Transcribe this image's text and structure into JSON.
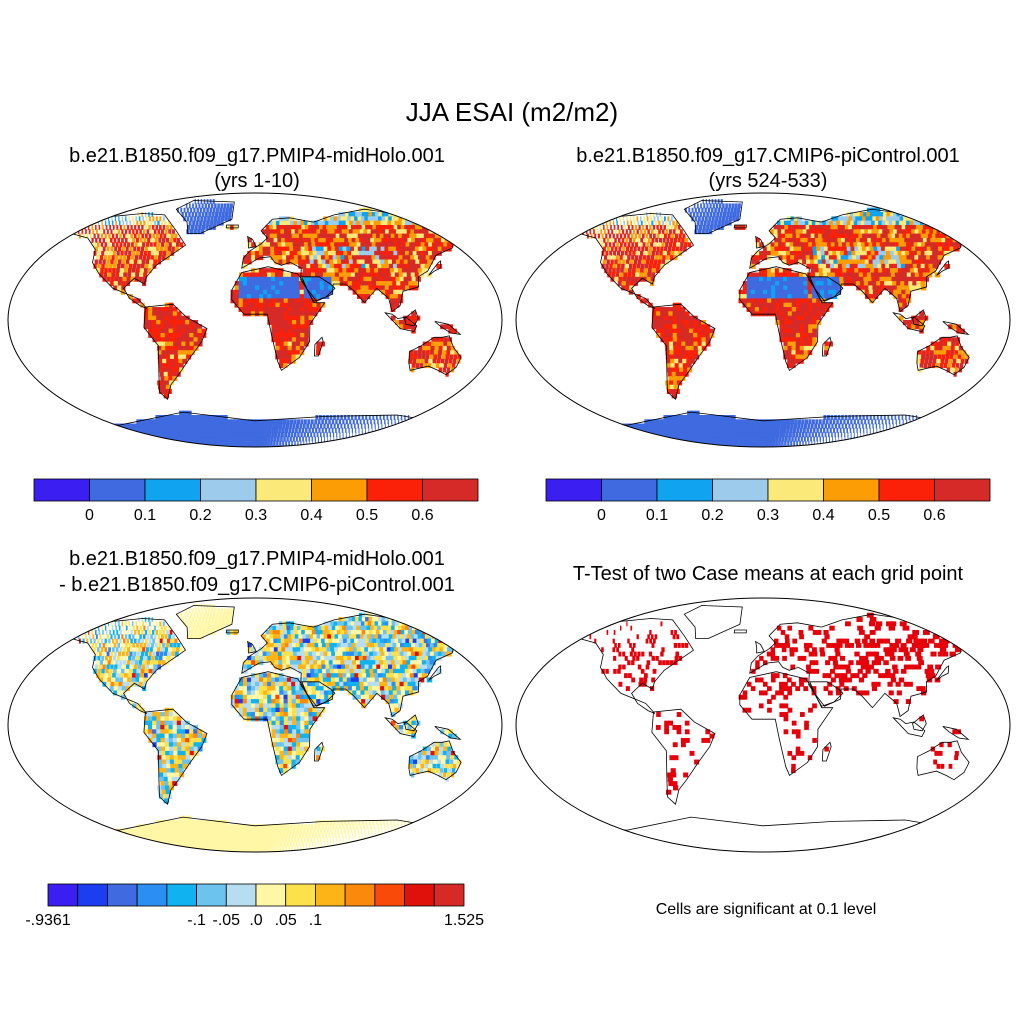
{
  "title": "JJA ESAI (m2/m2)",
  "chart_data": [
    {
      "type": "heatmap",
      "title_line1": "b.e21.B1850.f09_g17.PMIP4-midHolo.001",
      "title_line2": "(yrs 1-10)",
      "variable": "ESAI",
      "units": "m2/m2",
      "colorbar": {
        "labels": [
          "0",
          "0.1",
          "0.2",
          "0.3",
          "0.4",
          "0.5",
          "0.6"
        ],
        "colors": [
          "#3b1ff2",
          "#3f6ae0",
          "#10a4f0",
          "#9ccbec",
          "#fbe97a",
          "#fc9d06",
          "#fa2108",
          "#d52a27"
        ]
      }
    },
    {
      "type": "heatmap",
      "title_line1": "b.e21.B1850.f09_g17.CMIP6-piControl.001",
      "title_line2": "(yrs 524-533)",
      "variable": "ESAI",
      "units": "m2/m2",
      "colorbar": {
        "labels": [
          "0",
          "0.1",
          "0.2",
          "0.3",
          "0.4",
          "0.5",
          "0.6"
        ],
        "colors": [
          "#3b1ff2",
          "#3f6ae0",
          "#10a4f0",
          "#9ccbec",
          "#fbe97a",
          "#fc9d06",
          "#fa2108",
          "#d52a27"
        ]
      }
    },
    {
      "type": "heatmap",
      "title_line1": "b.e21.B1850.f09_g17.PMIP4-midHolo.001",
      "title_line2": "- b.e21.B1850.f09_g17.CMIP6-piControl.001",
      "variable": "ESAI difference",
      "colorbar": {
        "labels": [
          "-.9361",
          "-.1",
          "-.05",
          ".0",
          ".05",
          ".1",
          "1.525"
        ],
        "min": -0.9361,
        "max": 1.525,
        "colors": [
          "#3b1ff2",
          "#1a3ef0",
          "#3f6ae0",
          "#2b8ef2",
          "#10b2f0",
          "#6cc3ee",
          "#b6def0",
          "#fff7a6",
          "#fde14a",
          "#fcb417",
          "#fb8a0c",
          "#fa4a0a",
          "#e0100a",
          "#d52a27"
        ]
      }
    },
    {
      "type": "heatmap",
      "title_line1": "T-Test of two Case means at each grid point",
      "footnote": "Cells are significant at 0.1 level",
      "significant_color": "#e6000a"
    }
  ]
}
